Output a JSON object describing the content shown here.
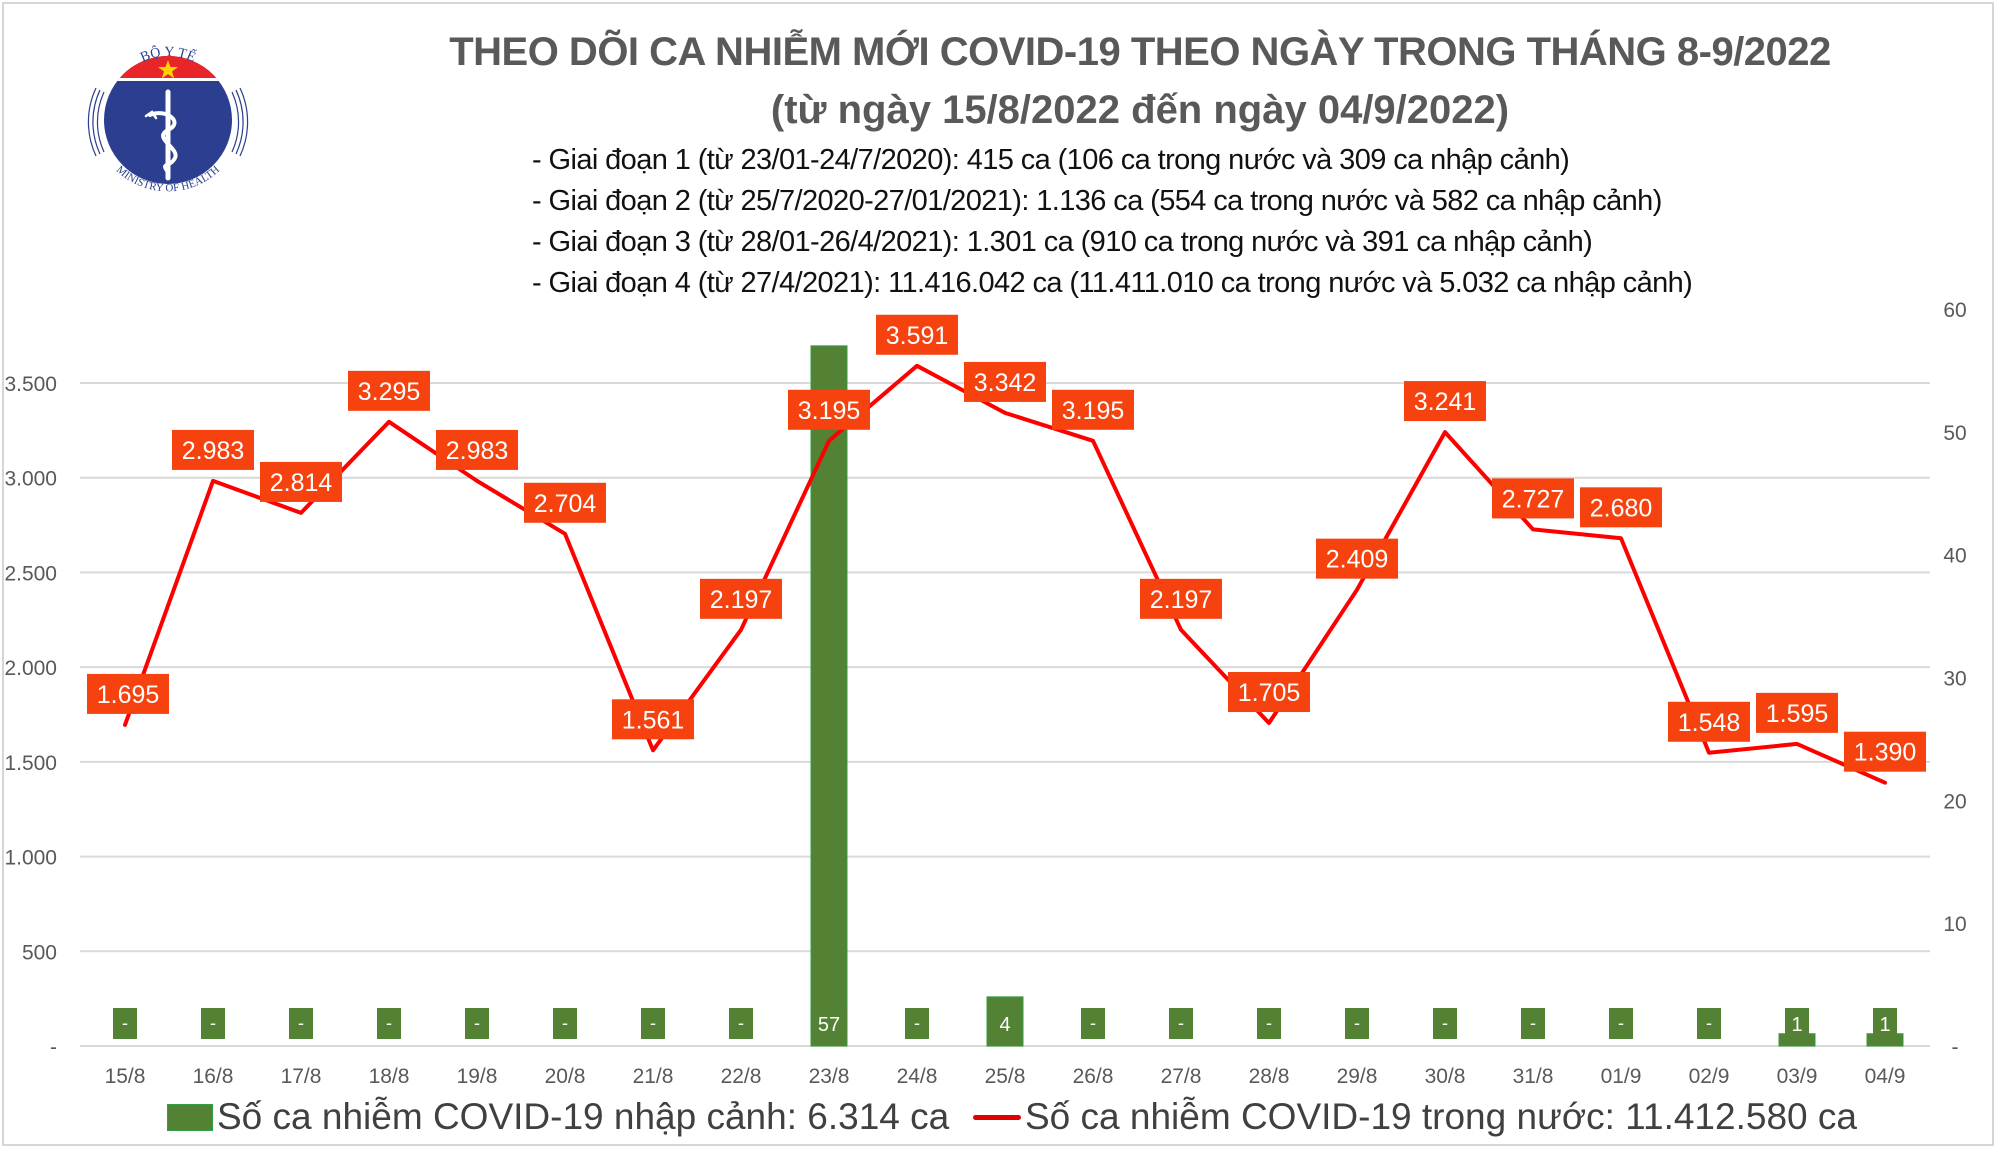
{
  "logo": {
    "top_text": "BỘ Y TẾ",
    "bottom_text": "MINISTRY OF HEALTH",
    "colors": {
      "red": "#e8262a",
      "blue": "#2b3e8f",
      "star": "#ffd200"
    }
  },
  "header": {
    "title": "THEO DÕI CA NHIỄM MỚI COVID-19 THEO NGÀY TRONG THÁNG 8-9/2022",
    "subtitle": "(từ ngày 15/8/2022 đến ngày 04/9/2022)",
    "stages": [
      "- Giai đoạn 1 (từ 23/01-24/7/2020): 415 ca (106 ca trong nước và 309 ca nhập cảnh)",
      "- Giai đoạn 2 (từ 25/7/2020-27/01/2021): 1.136 ca (554 ca trong nước và 582 ca nhập cảnh)",
      "- Giai đoạn 3 (từ 28/01-26/4/2021): 1.301 ca (910 ca trong nước và 391 ca nhập cảnh)",
      "- Giai đoạn 4 (từ 27/4/2021): 11.416.042 ca (11.411.010 ca trong nước và 5.032 ca nhập cảnh)"
    ]
  },
  "colors": {
    "line": "#ff0000",
    "label_box": "#f5420f",
    "bar": "#548235",
    "bar_border": "#2ea043",
    "grid": "#d9d9d9",
    "axis_text": "#595959"
  },
  "legend": {
    "bar_label": "Số ca nhiễm COVID-19 nhập cảnh: 6.314 ca",
    "line_label": "Số ca nhiễm COVID-19 trong nước: 11.412.580 ca"
  },
  "chart_data": {
    "type": "bar+line",
    "title": "THEO DÕI CA NHIỄM MỚI COVID-19 THEO NGÀY TRONG THÁNG 8-9/2022",
    "subtitle": "(từ ngày 15/8/2022 đến ngày 04/9/2022)",
    "categories": [
      "15/8",
      "16/8",
      "17/8",
      "18/8",
      "19/8",
      "20/8",
      "21/8",
      "22/8",
      "23/8",
      "24/8",
      "25/8",
      "26/8",
      "27/8",
      "28/8",
      "29/8",
      "30/8",
      "31/8",
      "01/9",
      "02/9",
      "03/9",
      "04/9"
    ],
    "series": [
      {
        "name": "Số ca nhiễm COVID-19 trong nước",
        "type": "line",
        "axis": "left",
        "values": [
          1695,
          2983,
          2814,
          3295,
          2983,
          2704,
          1561,
          2197,
          3195,
          3591,
          3342,
          3195,
          2197,
          1705,
          2409,
          3241,
          2727,
          2680,
          1548,
          1595,
          1390
        ],
        "labels": [
          "1.695",
          "2.983",
          "2.814",
          "3.295",
          "2.983",
          "2.704",
          "1.561",
          "2.197",
          "3.195",
          "3.591",
          "3.342",
          "3.195",
          "2.197",
          "1.705",
          "2.409",
          "3.241",
          "2.727",
          "2.680",
          "1.548",
          "1.595",
          "1.390"
        ]
      },
      {
        "name": "Số ca nhiễm COVID-19 nhập cảnh",
        "type": "bar",
        "axis": "right",
        "values": [
          0,
          0,
          0,
          0,
          0,
          0,
          0,
          0,
          57,
          0,
          4,
          0,
          0,
          0,
          0,
          0,
          0,
          0,
          0,
          1,
          1
        ],
        "labels": [
          "-",
          "-",
          "-",
          "-",
          "-",
          "-",
          "-",
          "-",
          "57",
          "-",
          "4",
          "-",
          "-",
          "-",
          "-",
          "-",
          "-",
          "-",
          "-",
          "1",
          "1"
        ]
      }
    ],
    "left_axis": {
      "ylim": [
        0,
        3500
      ],
      "ticks": [
        0,
        500,
        1000,
        1500,
        2000,
        2500,
        3000,
        3500
      ],
      "tick_labels": [
        "-",
        "500",
        "1.000",
        "1.500",
        "2.000",
        "2.500",
        "3.000",
        "3.500"
      ]
    },
    "right_axis": {
      "ylim": [
        0,
        60
      ],
      "ticks": [
        0,
        10,
        20,
        30,
        40,
        50,
        60
      ],
      "tick_labels": [
        "-",
        "10",
        "20",
        "30",
        "40",
        "50",
        "60"
      ]
    },
    "grid": true,
    "legend_position": "bottom",
    "xlabel": "",
    "ylabel": ""
  }
}
